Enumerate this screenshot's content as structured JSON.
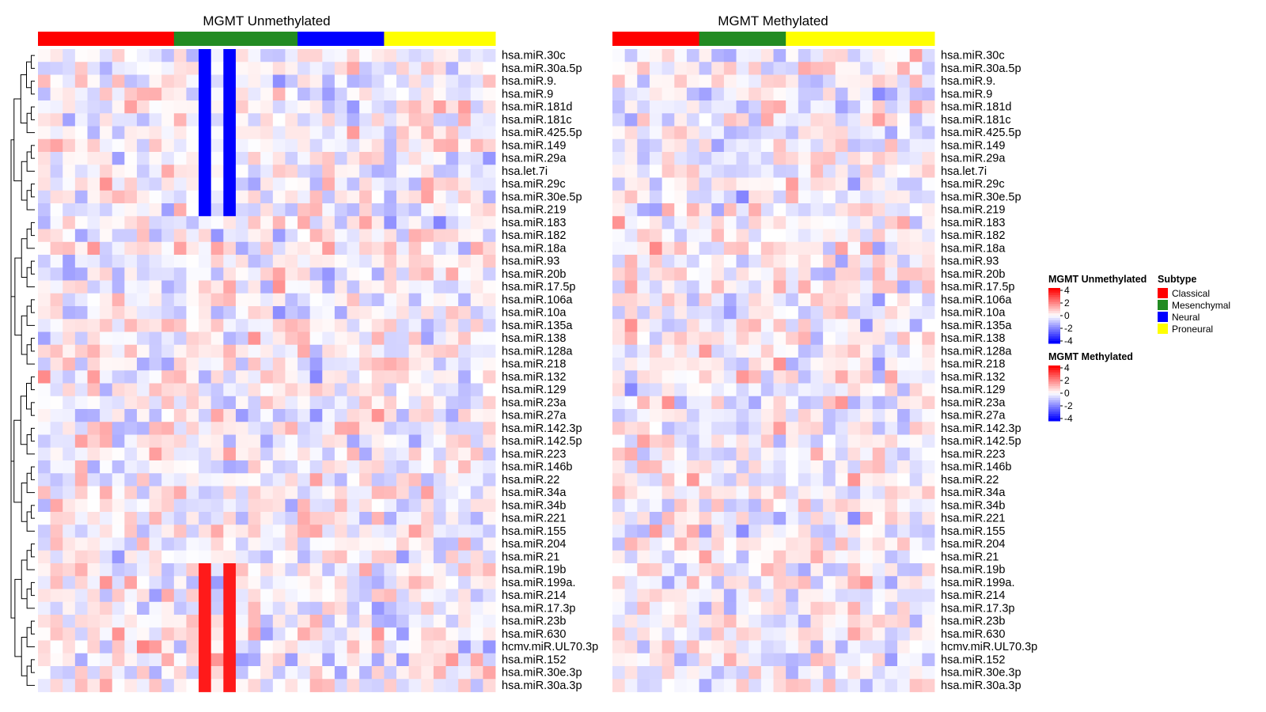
{
  "chart_data": {
    "type": "heatmap",
    "rows": [
      "hsa.miR.30c",
      "hsa.miR.30a.5p",
      "hsa.miR.9.",
      "hsa.miR.9",
      "hsa.miR.181d",
      "hsa.miR.181c",
      "hsa.miR.425.5p",
      "hsa.miR.149",
      "hsa.miR.29a",
      "hsa.let.7i",
      "hsa.miR.29c",
      "hsa.miR.30e.5p",
      "hsa.miR.219",
      "hsa.miR.183",
      "hsa.miR.182",
      "hsa.miR.18a",
      "hsa.miR.93",
      "hsa.miR.20b",
      "hsa.miR.17.5p",
      "hsa.miR.106a",
      "hsa.miR.10a",
      "hsa.miR.135a",
      "hsa.miR.138",
      "hsa.miR.128a",
      "hsa.miR.218",
      "hsa.miR.132",
      "hsa.miR.129",
      "hsa.miR.23a",
      "hsa.miR.27a",
      "hsa.miR.142.3p",
      "hsa.miR.142.5p",
      "hsa.miR.223",
      "hsa.miR.146b",
      "hsa.miR.22",
      "hsa.miR.34a",
      "hsa.miR.34b",
      "hsa.miR.221",
      "hsa.miR.155",
      "hsa.miR.204",
      "hsa.miR.21",
      "hsa.miR.19b",
      "hsa.miR.199a.",
      "hsa.miR.214",
      "hsa.miR.17.3p",
      "hsa.miR.23b",
      "hsa.miR.630",
      "hcmv.miR.UL70.3p",
      "hsa.miR.152",
      "hsa.miR.30e.3p",
      "hsa.miR.30a.3p"
    ],
    "panels": [
      {
        "title": "MGMT Unmethylated",
        "n_columns": 37,
        "subtype_groups": [
          {
            "subtype": "Classical",
            "count": 11
          },
          {
            "subtype": "Mesenchymal",
            "count": 10
          },
          {
            "subtype": "Neural",
            "count": 7
          },
          {
            "subtype": "Proneural",
            "count": 9
          }
        ],
        "color_scale": {
          "min": -4,
          "max": 4,
          "ticks": [
            4,
            2,
            0,
            -2,
            -4
          ]
        }
      },
      {
        "title": "MGMT Methylated",
        "n_columns": 26,
        "subtype_groups": [
          {
            "subtype": "Classical",
            "count": 7
          },
          {
            "subtype": "Mesenchymal",
            "count": 7
          },
          {
            "subtype": "Proneural",
            "count": 12
          }
        ],
        "color_scale": {
          "min": -4,
          "max": 4,
          "ticks": [
            4,
            2,
            0,
            -2,
            -4
          ]
        }
      }
    ],
    "colors": {
      "low": "#0000ff",
      "mid": "#ffffff",
      "high": "#ff0000"
    }
  },
  "legend": {
    "scale_titles": [
      "MGMT Unmethylated",
      "MGMT Methylated"
    ],
    "subtype_title": "Subtype",
    "subtypes": [
      {
        "name": "Classical",
        "color": "#ff0000"
      },
      {
        "name": "Mesenchymal",
        "color": "#228b22"
      },
      {
        "name": "Neural",
        "color": "#0000ff"
      },
      {
        "name": "Proneural",
        "color": "#ffff00"
      }
    ]
  }
}
